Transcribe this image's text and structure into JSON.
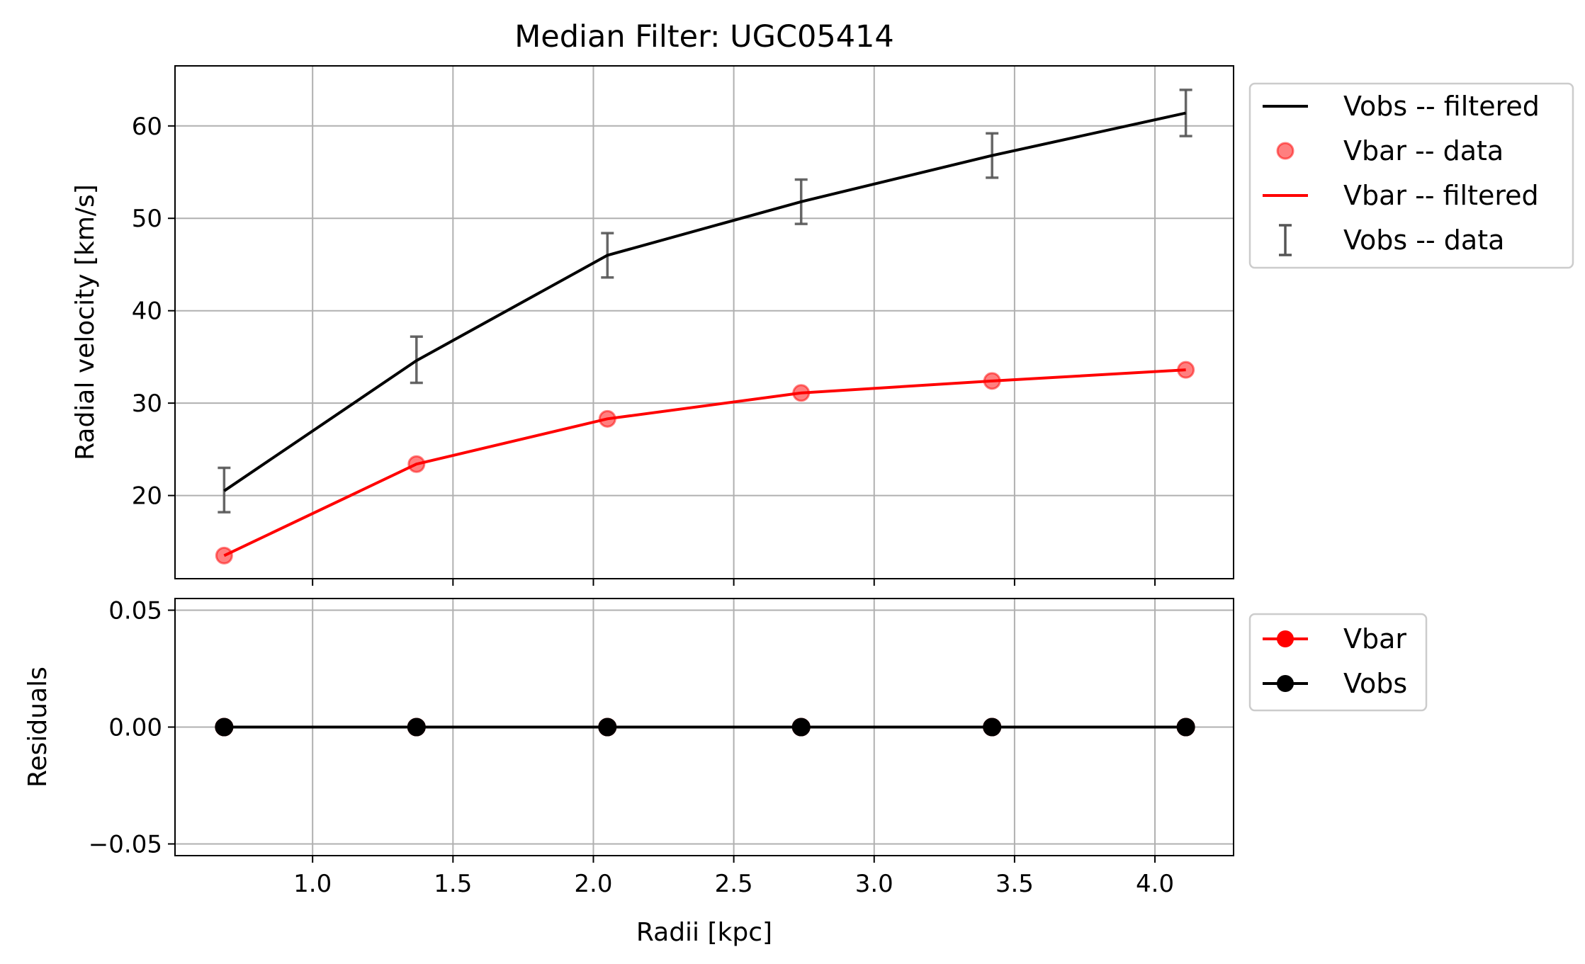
{
  "chart_data": [
    {
      "type": "line",
      "title": "Median Filter: UGC05414",
      "xlabel": "",
      "ylabel": "Radial velocity [km/s]",
      "xlim": [
        0.51,
        4.28
      ],
      "ylim": [
        11.0,
        66.5
      ],
      "xticks": [
        1.0,
        1.5,
        2.0,
        2.5,
        3.0,
        3.5,
        4.0
      ],
      "xtick_labels_visible": false,
      "yticks": [
        20,
        30,
        40,
        50,
        60
      ],
      "grid": true,
      "legend_position": "outside-top-right",
      "x": [
        0.685,
        1.37,
        2.05,
        2.74,
        3.42,
        4.11
      ],
      "series": [
        {
          "name": "Vobs -- filtered",
          "kind": "line",
          "color": "#000000",
          "values": [
            20.5,
            34.6,
            46.0,
            51.8,
            56.8,
            61.4
          ]
        },
        {
          "name": "Vbar -- data",
          "kind": "scatter",
          "color": "#ff0000",
          "values": [
            13.5,
            23.4,
            28.3,
            31.1,
            32.4,
            33.6
          ]
        },
        {
          "name": "Vbar -- filtered",
          "kind": "line",
          "color": "#ff0000",
          "values": [
            13.5,
            23.4,
            28.3,
            31.1,
            32.4,
            33.6
          ]
        },
        {
          "name": "Vobs -- data",
          "kind": "errorbar",
          "color": "#555555",
          "values": [
            20.6,
            34.7,
            46.0,
            51.8,
            56.8,
            61.4
          ],
          "errors": [
            2.4,
            2.5,
            2.4,
            2.4,
            2.4,
            2.5
          ]
        }
      ]
    },
    {
      "type": "line",
      "title": "",
      "xlabel": "Radii [kpc]",
      "ylabel": "Residuals",
      "xlim": [
        0.51,
        4.28
      ],
      "ylim": [
        -0.055,
        0.055
      ],
      "xticks": [
        1.0,
        1.5,
        2.0,
        2.5,
        3.0,
        3.5,
        4.0
      ],
      "xtick_labels": [
        "1.0",
        "1.5",
        "2.0",
        "2.5",
        "3.0",
        "3.5",
        "4.0"
      ],
      "yticks": [
        -0.05,
        0.0,
        0.05
      ],
      "ytick_labels": [
        "−0.05",
        "0.00",
        "0.05"
      ],
      "grid": true,
      "legend_position": "outside-top-right",
      "x": [
        0.685,
        1.37,
        2.05,
        2.74,
        3.42,
        4.11
      ],
      "series": [
        {
          "name": "Vbar",
          "kind": "line-marker",
          "color": "#ff0000",
          "values": [
            0,
            0,
            0,
            0,
            0,
            0
          ]
        },
        {
          "name": "Vobs",
          "kind": "line-marker",
          "color": "#000000",
          "values": [
            0,
            0,
            0,
            0,
            0,
            0
          ]
        }
      ]
    }
  ]
}
